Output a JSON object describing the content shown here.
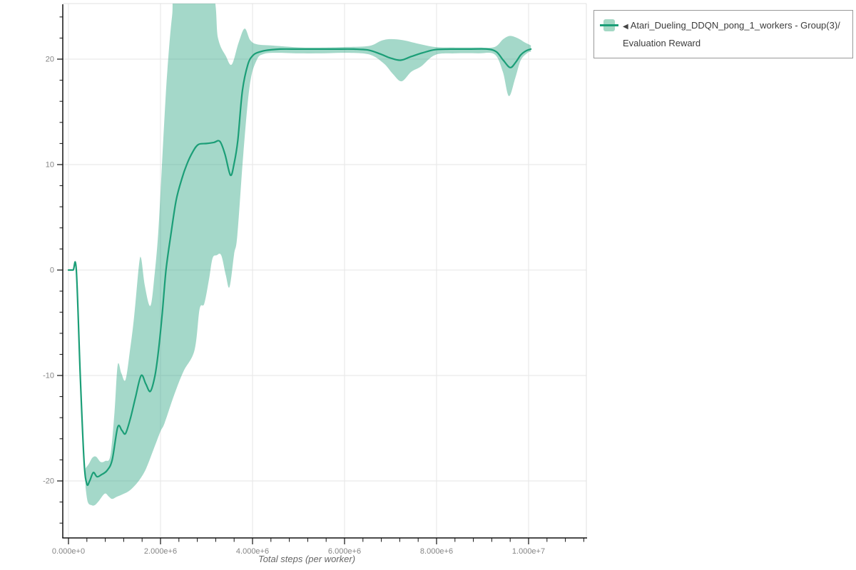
{
  "legend": {
    "marker": "◀",
    "label": "Atari_Dueling_DDQN_pong_1_workers - Group(3)/Evaluation Reward"
  },
  "colors": {
    "line": "#1b9e77",
    "band_fill": "#1b9e77",
    "band_opacity": 0.4,
    "grid": "#e6e6e6",
    "border": "#e0e0e0",
    "axis": "#111111",
    "tick_label": "#858585",
    "axis_title": "#666666",
    "legend_border": "#999999",
    "legend_text": "#3b3b3b",
    "background": "#ffffff"
  },
  "chart_data": {
    "type": "line",
    "title": "",
    "xlabel": "Total steps (per worker)",
    "ylabel": "",
    "grid": true,
    "legend_position": "top-right",
    "x_axis": {
      "range": [
        -124000,
        11256000
      ],
      "major_ticks": [
        {
          "v": 0,
          "label": "0.000e+0"
        },
        {
          "v": 2000000,
          "label": "2.000e+6"
        },
        {
          "v": 4000000,
          "label": "4.000e+6"
        },
        {
          "v": 6000000,
          "label": "6.000e+6"
        },
        {
          "v": 8000000,
          "label": "8.000e+6"
        },
        {
          "v": 10000000,
          "label": "1.000e+7"
        }
      ],
      "minor_tick_step": 400000,
      "minor_tick_range": [
        0,
        11200000
      ]
    },
    "y_axis": {
      "range": [
        -25.4,
        25.3
      ],
      "major_ticks": [
        {
          "v": -20,
          "label": "-20"
        },
        {
          "v": -10,
          "label": "-10"
        },
        {
          "v": 0,
          "label": "0"
        },
        {
          "v": 10,
          "label": "10"
        },
        {
          "v": 20,
          "label": "20"
        }
      ],
      "minor_tick_step": 2,
      "minor_tick_range": [
        -24,
        24
      ]
    },
    "series": [
      {
        "name": "Atari_Dueling_DDQN_pong_1_workers - Group(3)/Evaluation Reward",
        "color": "#1b9e77",
        "band_opacity": 0.4,
        "mean": [
          [
            0,
            0
          ],
          [
            100000,
            0
          ],
          [
            170000,
            0
          ],
          [
            260000,
            -10.5
          ],
          [
            340000,
            -18.2
          ],
          [
            400000,
            -20.3
          ],
          [
            460000,
            -20.0
          ],
          [
            540000,
            -19.2
          ],
          [
            620000,
            -19.6
          ],
          [
            720000,
            -19.4
          ],
          [
            840000,
            -19.0
          ],
          [
            950000,
            -18.0
          ],
          [
            1070000,
            -14.9
          ],
          [
            1160000,
            -15.2
          ],
          [
            1240000,
            -15.5
          ],
          [
            1350000,
            -14.0
          ],
          [
            1460000,
            -12.0
          ],
          [
            1580000,
            -10.0
          ],
          [
            1680000,
            -10.8
          ],
          [
            1780000,
            -11.5
          ],
          [
            1880000,
            -10.0
          ],
          [
            1960000,
            -7.5
          ],
          [
            2040000,
            -4.0
          ],
          [
            2120000,
            0.0
          ],
          [
            2220000,
            3.2
          ],
          [
            2340000,
            6.6
          ],
          [
            2460000,
            8.6
          ],
          [
            2570000,
            10.0
          ],
          [
            2700000,
            11.2
          ],
          [
            2820000,
            11.9
          ],
          [
            3000000,
            12.0
          ],
          [
            3160000,
            12.1
          ],
          [
            3290000,
            12.2
          ],
          [
            3400000,
            11.0
          ],
          [
            3520000,
            9.0
          ],
          [
            3600000,
            10.1
          ],
          [
            3680000,
            12.3
          ],
          [
            3780000,
            17.0
          ],
          [
            3900000,
            19.5
          ],
          [
            4020000,
            20.4
          ],
          [
            4170000,
            20.7
          ],
          [
            4330000,
            20.85
          ],
          [
            4600000,
            20.95
          ],
          [
            5000000,
            20.95
          ],
          [
            5400000,
            20.95
          ],
          [
            5800000,
            20.95
          ],
          [
            6200000,
            20.95
          ],
          [
            6530000,
            20.85
          ],
          [
            6800000,
            20.45
          ],
          [
            7000000,
            20.1
          ],
          [
            7220000,
            19.9
          ],
          [
            7450000,
            20.25
          ],
          [
            7700000,
            20.6
          ],
          [
            7970000,
            20.9
          ],
          [
            8300000,
            20.95
          ],
          [
            8700000,
            20.95
          ],
          [
            9100000,
            20.95
          ],
          [
            9300000,
            20.7
          ],
          [
            9450000,
            19.9
          ],
          [
            9600000,
            19.2
          ],
          [
            9720000,
            19.7
          ],
          [
            9830000,
            20.4
          ],
          [
            9950000,
            20.8
          ],
          [
            10050000,
            20.95
          ]
        ],
        "band_upper": [
          [
            370000,
            -18.8
          ],
          [
            440000,
            -18.4
          ],
          [
            520000,
            -17.8
          ],
          [
            600000,
            -17.7
          ],
          [
            700000,
            -18.2
          ],
          [
            800000,
            -18.1
          ],
          [
            910000,
            -17.6
          ],
          [
            1000000,
            -13.5
          ],
          [
            1070000,
            -9.0
          ],
          [
            1150000,
            -9.8
          ],
          [
            1240000,
            -10.4
          ],
          [
            1340000,
            -7.5
          ],
          [
            1430000,
            -4.3
          ],
          [
            1530000,
            0.4
          ],
          [
            1580000,
            1.1
          ],
          [
            1660000,
            -1.5
          ],
          [
            1780000,
            -3.4
          ],
          [
            1870000,
            -0.5
          ],
          [
            1950000,
            3.5
          ],
          [
            2020000,
            9.0
          ],
          [
            2080000,
            14.0
          ],
          [
            2150000,
            19.0
          ],
          [
            2250000,
            24.0
          ],
          [
            2360000,
            26.5
          ],
          [
            3100000,
            26.5
          ],
          [
            3250000,
            22.0
          ],
          [
            3420000,
            20.3
          ],
          [
            3550000,
            19.5
          ],
          [
            3700000,
            21.6
          ],
          [
            3830000,
            22.9
          ],
          [
            3950000,
            21.8
          ],
          [
            4100000,
            21.4
          ],
          [
            4400000,
            21.3
          ],
          [
            4700000,
            21.2
          ],
          [
            5100000,
            21.1
          ],
          [
            5600000,
            21.1
          ],
          [
            6000000,
            21.15
          ],
          [
            6530000,
            21.25
          ],
          [
            6800000,
            21.75
          ],
          [
            7000000,
            21.9
          ],
          [
            7270000,
            21.8
          ],
          [
            7610000,
            21.45
          ],
          [
            7970000,
            21.15
          ],
          [
            8400000,
            21.1
          ],
          [
            8900000,
            21.1
          ],
          [
            9260000,
            21.15
          ],
          [
            9450000,
            21.9
          ],
          [
            9600000,
            22.2
          ],
          [
            9780000,
            21.95
          ],
          [
            9910000,
            21.6
          ],
          [
            10050000,
            21.3
          ]
        ],
        "band_lower": [
          [
            370000,
            -20.6
          ],
          [
            420000,
            -22.0
          ],
          [
            500000,
            -22.3
          ],
          [
            570000,
            -22.3
          ],
          [
            660000,
            -21.9
          ],
          [
            790000,
            -21.2
          ],
          [
            880000,
            -21.5
          ],
          [
            950000,
            -21.7
          ],
          [
            1050000,
            -21.5
          ],
          [
            1160000,
            -21.3
          ],
          [
            1300000,
            -21.0
          ],
          [
            1430000,
            -20.5
          ],
          [
            1560000,
            -19.8
          ],
          [
            1690000,
            -18.8
          ],
          [
            1850000,
            -17.0
          ],
          [
            2000000,
            -15.3
          ],
          [
            2090000,
            -14.5
          ],
          [
            2300000,
            -11.8
          ],
          [
            2500000,
            -9.6
          ],
          [
            2740000,
            -7.6
          ],
          [
            2850000,
            -3.7
          ],
          [
            2950000,
            -3.2
          ],
          [
            3050000,
            -1.0
          ],
          [
            3130000,
            1.1
          ],
          [
            3220000,
            1.4
          ],
          [
            3320000,
            1.4
          ],
          [
            3420000,
            -0.5
          ],
          [
            3500000,
            -1.6
          ],
          [
            3600000,
            1.5
          ],
          [
            3670000,
            3.3
          ],
          [
            3800000,
            11.0
          ],
          [
            3940000,
            17.5
          ],
          [
            4090000,
            19.9
          ],
          [
            4250000,
            20.5
          ],
          [
            4560000,
            20.6
          ],
          [
            5000000,
            20.55
          ],
          [
            5500000,
            20.55
          ],
          [
            6000000,
            20.6
          ],
          [
            6530000,
            20.45
          ],
          [
            6850000,
            19.6
          ],
          [
            7050000,
            18.6
          ],
          [
            7240000,
            17.9
          ],
          [
            7450000,
            18.8
          ],
          [
            7660000,
            19.3
          ],
          [
            7970000,
            20.4
          ],
          [
            8400000,
            20.55
          ],
          [
            8900000,
            20.55
          ],
          [
            9260000,
            20.45
          ],
          [
            9440000,
            18.8
          ],
          [
            9570000,
            16.5
          ],
          [
            9710000,
            18.2
          ],
          [
            9830000,
            19.9
          ],
          [
            9980000,
            20.6
          ],
          [
            10050000,
            20.7
          ]
        ]
      }
    ]
  }
}
